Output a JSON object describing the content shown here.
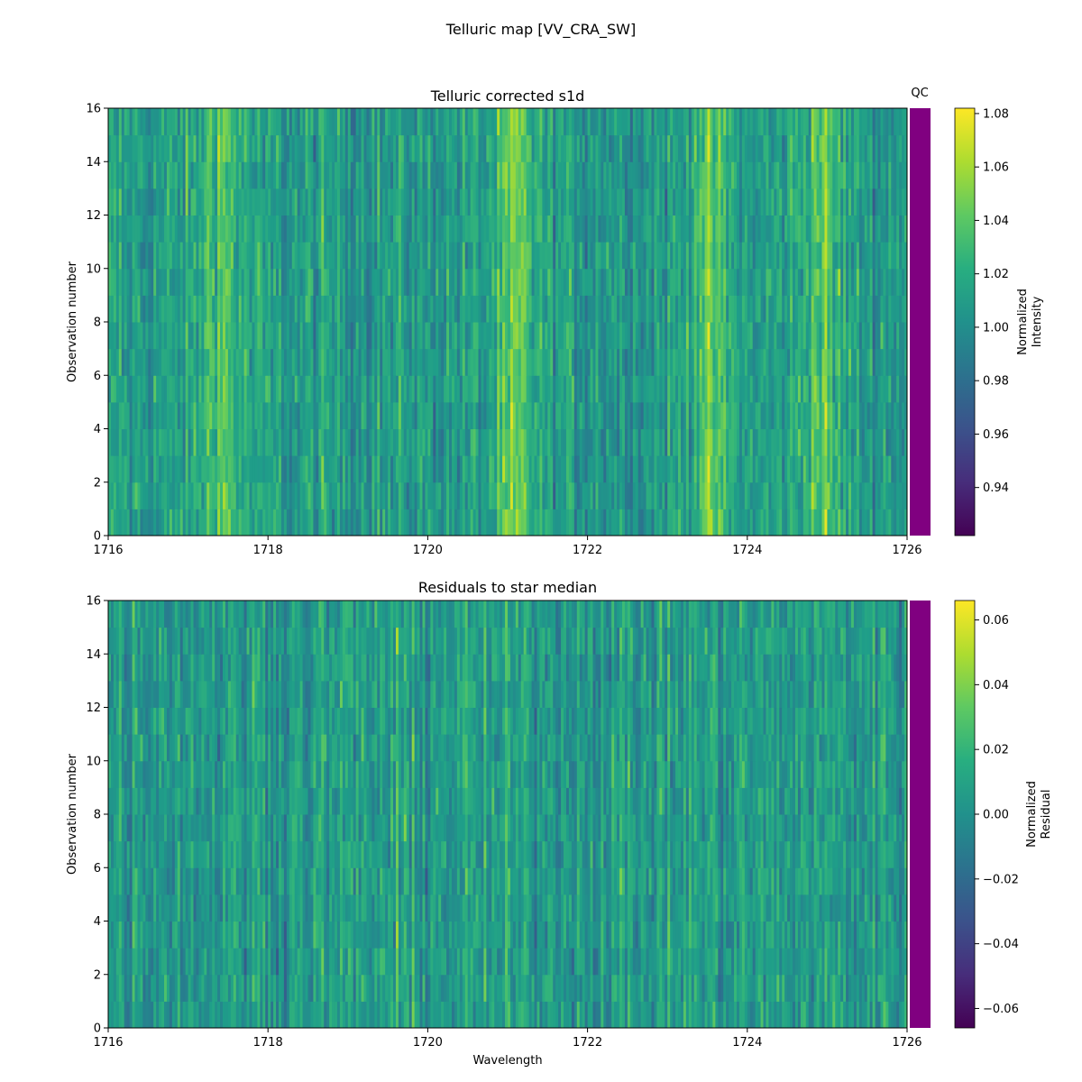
{
  "figure": {
    "suptitle": "Telluric map [VV_CRA_SW]",
    "qc_label": "QC",
    "qc_color": "#800080"
  },
  "chart_data": [
    {
      "type": "heatmap",
      "title": "Telluric corrected s1d",
      "xlabel": "",
      "ylabel": "Observation number",
      "xlim": [
        1716,
        1726
      ],
      "ylim": [
        0,
        16
      ],
      "x_ticks": [
        "1716",
        "1718",
        "1720",
        "1722",
        "1724",
        "1726"
      ],
      "y_ticks": [
        "0",
        "2",
        "4",
        "6",
        "8",
        "10",
        "12",
        "14",
        "16"
      ],
      "n_observations": 16,
      "colormap": "viridis",
      "colorbar": {
        "label_line1": "Normalized",
        "label_line2": "Intensity",
        "range": [
          0.922,
          1.082
        ],
        "ticks": [
          "0.94",
          "0.96",
          "0.98",
          "1.00",
          "1.02",
          "1.04",
          "1.06",
          "1.08"
        ],
        "tick_values": [
          0.94,
          0.96,
          0.98,
          1.0,
          1.02,
          1.04,
          1.06,
          1.08
        ]
      },
      "bright_features_wavelength": [
        1717.4,
        1721.1,
        1723.5,
        1724.9
      ]
    },
    {
      "type": "heatmap",
      "title": "Residuals to star median",
      "xlabel": "Wavelength",
      "ylabel": "Observation number",
      "xlim": [
        1716,
        1726
      ],
      "ylim": [
        0,
        16
      ],
      "x_ticks": [
        "1716",
        "1718",
        "1720",
        "1722",
        "1724",
        "1726"
      ],
      "y_ticks": [
        "0",
        "2",
        "4",
        "6",
        "8",
        "10",
        "12",
        "14",
        "16"
      ],
      "n_observations": 16,
      "colormap": "viridis",
      "colorbar": {
        "label_line1": "Normalized",
        "label_line2": "Residual",
        "range": [
          -0.066,
          0.066
        ],
        "ticks": [
          "−0.06",
          "−0.04",
          "−0.02",
          "0.00",
          "0.02",
          "0.04",
          "0.06"
        ],
        "tick_values": [
          -0.06,
          -0.04,
          -0.02,
          0.0,
          0.02,
          0.04,
          0.06
        ]
      }
    }
  ]
}
